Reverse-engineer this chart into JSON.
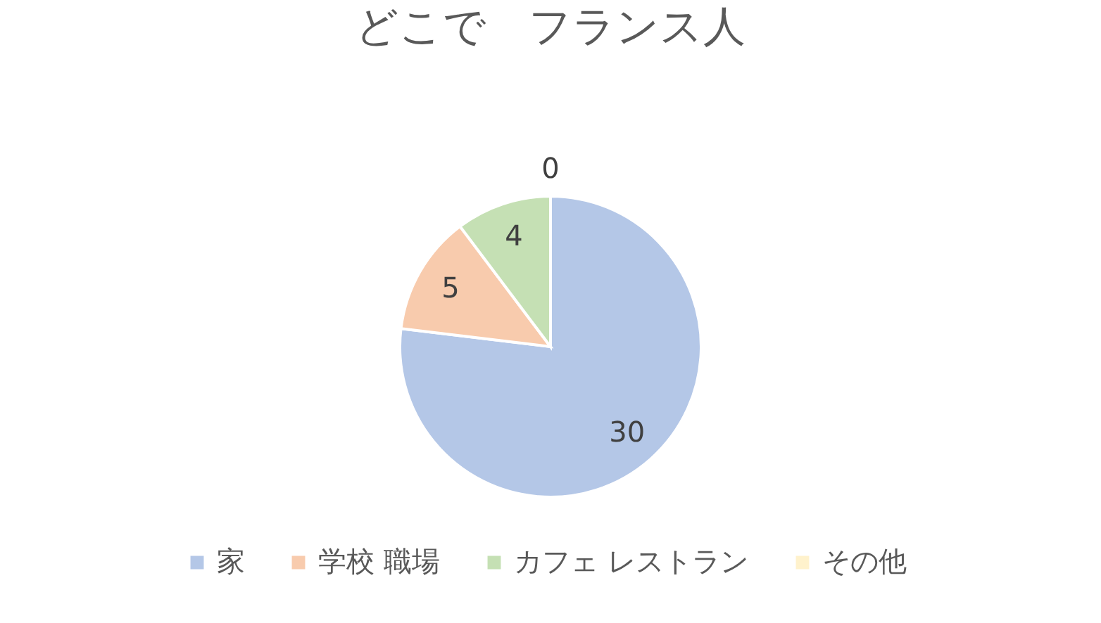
{
  "chart_data": {
    "type": "pie",
    "title": "どこで　フランス人",
    "categories": [
      "家",
      "学校 職場",
      "カフェ レストラン",
      "その他"
    ],
    "values": [
      30,
      5,
      4,
      0
    ],
    "colors": [
      "#b4c7e7",
      "#f8cbad",
      "#c5e0b4",
      "#fff2cc"
    ],
    "value_labels": [
      "30",
      "5",
      "4",
      "0"
    ],
    "legend": "bottom"
  }
}
